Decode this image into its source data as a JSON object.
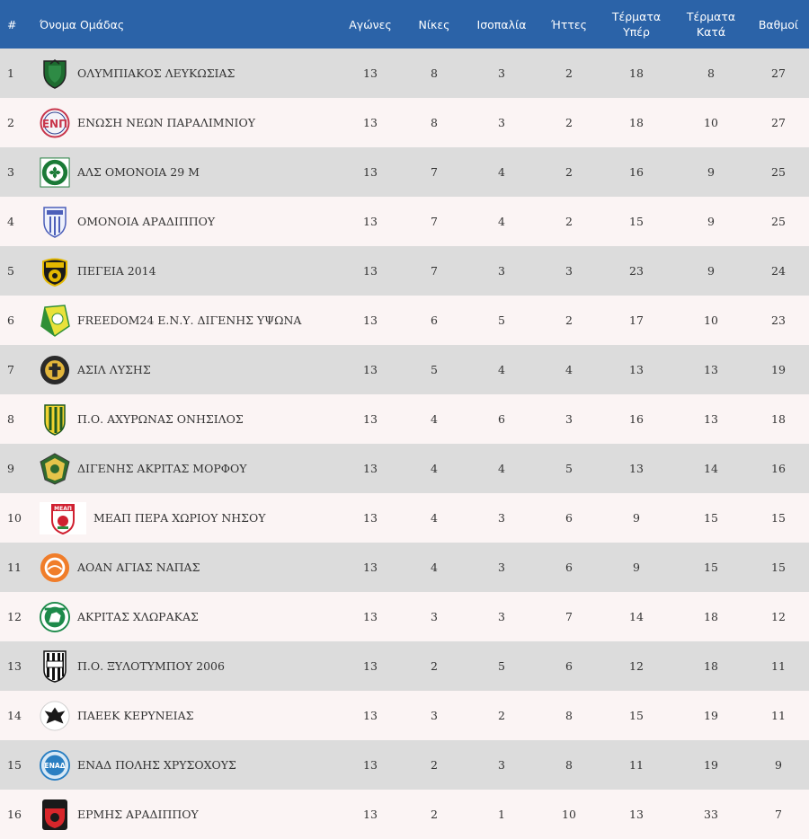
{
  "headers": {
    "pos": "#",
    "team": "Όνομα Ομάδας",
    "played": "Αγώνες",
    "wins": "Νίκες",
    "draws": "Ισοπαλία",
    "losses": "Ήττες",
    "gf_line1": "Τέρματα",
    "gf_line2": "Υπέρ",
    "ga_line1": "Τέρματα",
    "ga_line2": "Κατά",
    "points": "Βαθμοί"
  },
  "rows": [
    {
      "pos": "1",
      "team": "ΟΛΥΜΠΙΑΚΟΣ ΛΕΥΚΩΣΙΑΣ",
      "played": "13",
      "wins": "8",
      "draws": "3",
      "losses": "2",
      "gf": "18",
      "ga": "8",
      "points": "27",
      "logo": "olympiakos-crest-icon"
    },
    {
      "pos": "2",
      "team": "ΕΝΩΣΗ ΝΕΩΝ ΠΑΡΑΛΙΜΝΙΟΥ",
      "played": "13",
      "wins": "8",
      "draws": "3",
      "losses": "2",
      "gf": "18",
      "ga": "10",
      "points": "27",
      "logo": "enp-crest-icon"
    },
    {
      "pos": "3",
      "team": "ΑΛΣ ΟΜΟΝΟΙΑ 29 Μ",
      "played": "13",
      "wins": "7",
      "draws": "4",
      "losses": "2",
      "gf": "16",
      "ga": "9",
      "points": "25",
      "logo": "omonoia-29m-crest-icon"
    },
    {
      "pos": "4",
      "team": "ΟΜΟΝΟΙΑ ΑΡΑΔΙΠΠΟΥ",
      "played": "13",
      "wins": "7",
      "draws": "4",
      "losses": "2",
      "gf": "15",
      "ga": "9",
      "points": "25",
      "logo": "omonoia-aradippou-crest-icon"
    },
    {
      "pos": "5",
      "team": "ΠΕΓΕΙΑ 2014",
      "played": "13",
      "wins": "7",
      "draws": "3",
      "losses": "3",
      "gf": "23",
      "ga": "9",
      "points": "24",
      "logo": "pegeia-crest-icon"
    },
    {
      "pos": "6",
      "team": "FREEDOM24 Ε.Ν.Υ. ΔΙΓΕΝΗΣ ΥΨΩΝΑ",
      "played": "13",
      "wins": "6",
      "draws": "5",
      "losses": "2",
      "gf": "17",
      "ga": "10",
      "points": "23",
      "logo": "digenis-ypsona-crest-icon"
    },
    {
      "pos": "7",
      "team": "ΑΣΙΛ ΛΥΣΗΣ",
      "played": "13",
      "wins": "5",
      "draws": "4",
      "losses": "4",
      "gf": "13",
      "ga": "13",
      "points": "19",
      "logo": "asil-lysis-crest-icon"
    },
    {
      "pos": "8",
      "team": "Π.Ο. ΑΧΥΡΩΝΑΣ ΟΝΗΣΙΛΟΣ",
      "played": "13",
      "wins": "4",
      "draws": "6",
      "losses": "3",
      "gf": "16",
      "ga": "13",
      "points": "18",
      "logo": "achyronas-crest-icon"
    },
    {
      "pos": "9",
      "team": "ΔΙΓΕΝΗΣ ΑΚΡΙΤΑΣ ΜΟΡΦΟΥ",
      "played": "13",
      "wins": "4",
      "draws": "4",
      "losses": "5",
      "gf": "13",
      "ga": "14",
      "points": "16",
      "logo": "digenis-morfou-crest-icon"
    },
    {
      "pos": "10",
      "team": "ΜΕΑΠ ΠΕΡΑ ΧΩΡΙΟΥ ΝΗΣΟΥ",
      "played": "13",
      "wins": "4",
      "draws": "3",
      "losses": "6",
      "gf": "9",
      "ga": "15",
      "points": "15",
      "logo": "meap-crest-icon"
    },
    {
      "pos": "11",
      "team": "ΑΟΑΝ ΑΓΙΑΣ ΝΑΠΑΣ",
      "played": "13",
      "wins": "4",
      "draws": "3",
      "losses": "6",
      "gf": "9",
      "ga": "15",
      "points": "15",
      "logo": "aoan-crest-icon"
    },
    {
      "pos": "12",
      "team": "ΑΚΡΙΤΑΣ ΧΛΩΡΑΚΑΣ",
      "played": "13",
      "wins": "3",
      "draws": "3",
      "losses": "7",
      "gf": "14",
      "ga": "18",
      "points": "12",
      "logo": "akritas-crest-icon"
    },
    {
      "pos": "13",
      "team": "Π.Ο. ΞΥΛΟΤΥΜΠΟΥ 2006",
      "played": "13",
      "wins": "2",
      "draws": "5",
      "losses": "6",
      "gf": "12",
      "ga": "18",
      "points": "11",
      "logo": "xylotympou-crest-icon"
    },
    {
      "pos": "14",
      "team": "ΠΑΕΕΚ ΚΕΡΥΝΕΙΑΣ",
      "played": "13",
      "wins": "3",
      "draws": "2",
      "losses": "8",
      "gf": "15",
      "ga": "19",
      "points": "11",
      "logo": "paeek-crest-icon"
    },
    {
      "pos": "15",
      "team": "ΕΝΑΔ ΠΟΛΗΣ ΧΡΥΣΟΧΟΥΣ",
      "played": "13",
      "wins": "2",
      "draws": "3",
      "losses": "8",
      "gf": "11",
      "ga": "19",
      "points": "9",
      "logo": "enad-crest-icon"
    },
    {
      "pos": "16",
      "team": "ΕΡΜΗΣ ΑΡΑΔΙΠΠΟΥ",
      "played": "13",
      "wins": "2",
      "draws": "1",
      "losses": "10",
      "gf": "13",
      "ga": "33",
      "points": "7",
      "logo": "ermis-crest-icon"
    }
  ]
}
